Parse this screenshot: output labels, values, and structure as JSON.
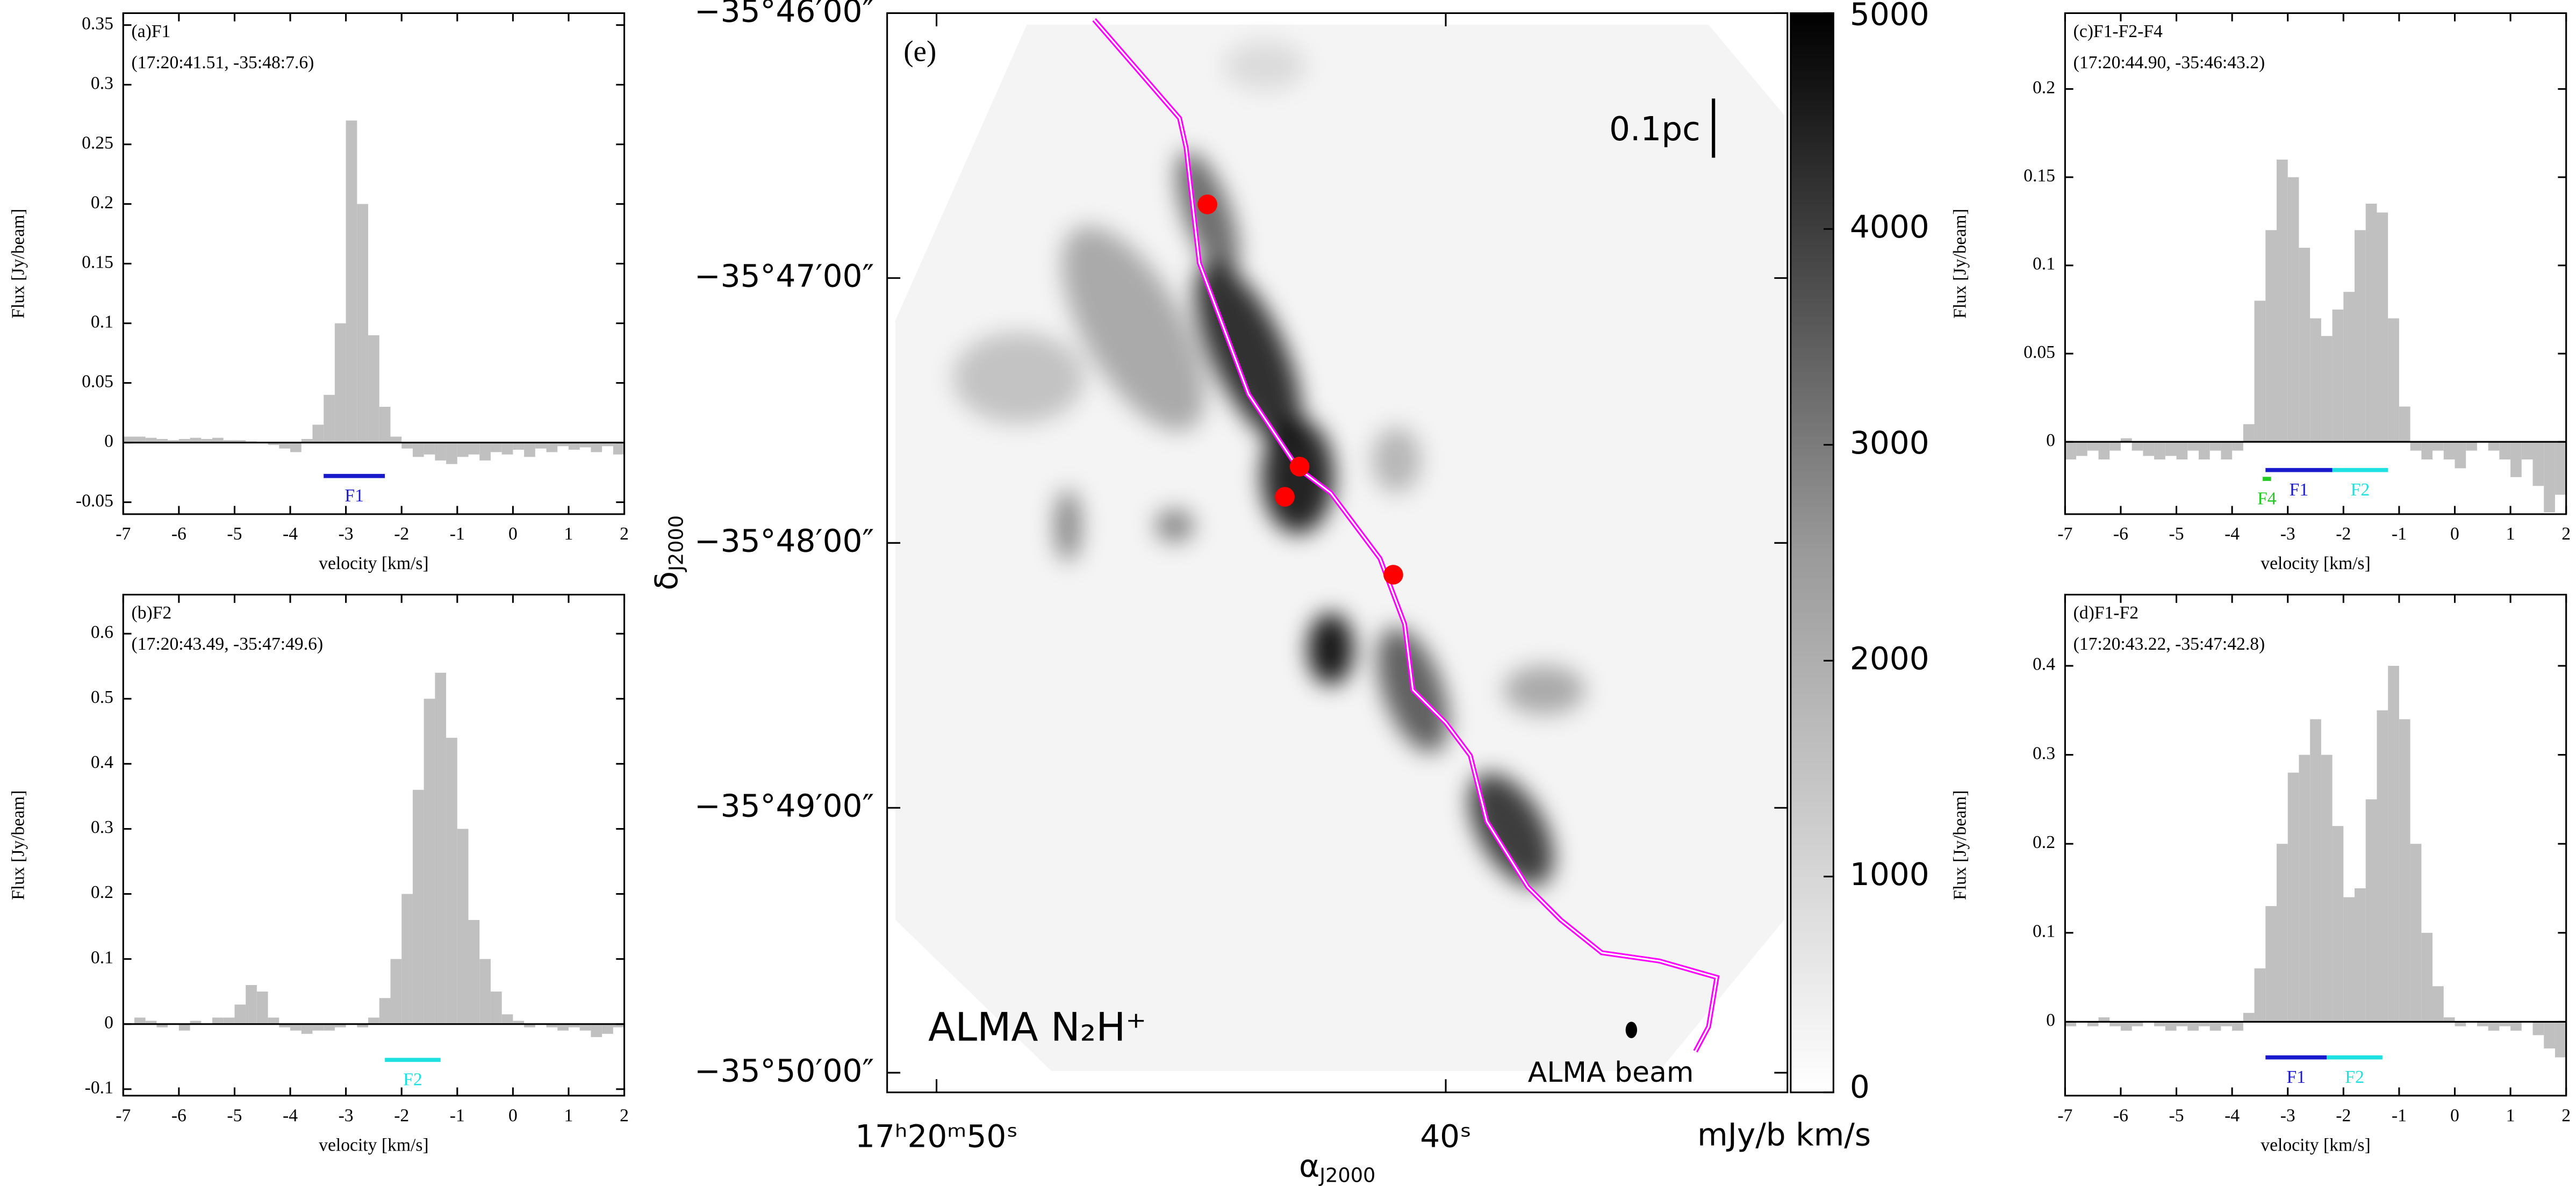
{
  "chart_data": [
    {
      "type": "bar",
      "title": "(a)F1",
      "subtitle": "(17:20:41.51, -35:48:7.6)",
      "xlabel": "velocity [km/s]",
      "ylabel": "Flux [Jy/beam]",
      "color": "#c0c0c0",
      "xlim": [
        -7,
        2
      ],
      "ylim": [
        -0.06,
        0.36
      ],
      "xticks": [
        -7,
        -6,
        -5,
        -4,
        -3,
        -2,
        -1,
        0,
        1,
        2
      ],
      "yticks": [
        -0.05,
        0,
        0.05,
        0.1,
        0.15,
        0.2,
        0.25,
        0.3,
        0.35
      ],
      "x": [
        -6.9,
        -6.7,
        -6.5,
        -6.3,
        -6.1,
        -5.9,
        -5.7,
        -5.5,
        -5.3,
        -5.1,
        -4.9,
        -4.7,
        -4.5,
        -4.3,
        -4.1,
        -3.9,
        -3.7,
        -3.5,
        -3.3,
        -3.1,
        -2.9,
        -2.7,
        -2.5,
        -2.3,
        -2.1,
        -1.9,
        -1.7,
        -1.5,
        -1.3,
        -1.1,
        -0.9,
        -0.7,
        -0.5,
        -0.3,
        -0.1,
        0.1,
        0.3,
        0.5,
        0.7,
        0.9,
        1.1,
        1.3,
        1.5,
        1.7,
        1.9
      ],
      "values": [
        0.005,
        0.005,
        0.004,
        0.003,
        0.002,
        0.003,
        0.004,
        0.003,
        0.004,
        0.002,
        0.002,
        0.001,
        0.0,
        -0.002,
        -0.005,
        -0.008,
        0.003,
        0.015,
        0.04,
        0.1,
        0.27,
        0.2,
        0.09,
        0.03,
        0.005,
        -0.005,
        -0.012,
        -0.01,
        -0.015,
        -0.018,
        -0.012,
        -0.01,
        -0.015,
        -0.008,
        -0.01,
        -0.006,
        -0.012,
        -0.005,
        -0.008,
        -0.003,
        -0.006,
        -0.004,
        -0.008,
        -0.003,
        -0.01
      ],
      "ranges": [
        {
          "label": "F1",
          "start": -3.4,
          "end": -2.3,
          "y": -0.028,
          "color": "#1a1acd"
        }
      ]
    },
    {
      "type": "bar",
      "title": "(b)F2",
      "subtitle": "(17:20:43.49, -35:47:49.6)",
      "xlabel": "velocity [km/s]",
      "ylabel": "Flux [Jy/beam]",
      "color": "#c0c0c0",
      "xlim": [
        -7,
        2
      ],
      "ylim": [
        -0.11,
        0.66
      ],
      "xticks": [
        -7,
        -6,
        -5,
        -4,
        -3,
        -2,
        -1,
        0,
        1,
        2
      ],
      "yticks": [
        -0.1,
        0,
        0.1,
        0.2,
        0.3,
        0.4,
        0.5,
        0.6
      ],
      "x": [
        -6.9,
        -6.7,
        -6.5,
        -6.3,
        -6.1,
        -5.9,
        -5.7,
        -5.5,
        -5.3,
        -5.1,
        -4.9,
        -4.7,
        -4.5,
        -4.3,
        -4.1,
        -3.9,
        -3.7,
        -3.5,
        -3.3,
        -3.1,
        -2.9,
        -2.7,
        -2.5,
        -2.3,
        -2.1,
        -1.9,
        -1.7,
        -1.5,
        -1.3,
        -1.1,
        -0.9,
        -0.7,
        -0.5,
        -0.3,
        -0.1,
        0.1,
        0.3,
        0.5,
        0.7,
        0.9,
        1.1,
        1.3,
        1.5,
        1.7,
        1.9
      ],
      "values": [
        0.0,
        0.01,
        0.005,
        -0.005,
        0.0,
        -0.01,
        0.005,
        0.0,
        0.01,
        0.01,
        0.03,
        0.06,
        0.05,
        0.01,
        -0.005,
        -0.01,
        -0.015,
        -0.01,
        -0.01,
        -0.005,
        0.0,
        -0.005,
        0.01,
        0.04,
        0.1,
        0.2,
        0.36,
        0.5,
        0.54,
        0.44,
        0.3,
        0.16,
        0.1,
        0.05,
        0.015,
        0.005,
        -0.005,
        0.0,
        -0.005,
        -0.01,
        -0.005,
        -0.01,
        -0.02,
        -0.015,
        -0.005
      ],
      "ranges": [
        {
          "label": "F2",
          "start": -2.3,
          "end": -1.3,
          "y": -0.055,
          "color": "#1ee0e0"
        }
      ]
    },
    {
      "type": "bar",
      "title": "(c)F1-F2-F4",
      "subtitle": "(17:20:44.90, -35:46:43.2)",
      "xlabel": "velocity [km/s]",
      "ylabel": "Flux [Jy/beam]",
      "color": "#c0c0c0",
      "xlim": [
        -7,
        2
      ],
      "ylim": [
        -0.041,
        0.243
      ],
      "xticks": [
        -7,
        -6,
        -5,
        -4,
        -3,
        -2,
        -1,
        0,
        1,
        2
      ],
      "yticks": [
        0,
        0.05,
        0.1,
        0.15,
        0.2
      ],
      "x": [
        -6.9,
        -6.7,
        -6.5,
        -6.3,
        -6.1,
        -5.9,
        -5.7,
        -5.5,
        -5.3,
        -5.1,
        -4.9,
        -4.7,
        -4.5,
        -4.3,
        -4.1,
        -3.9,
        -3.7,
        -3.5,
        -3.3,
        -3.1,
        -2.9,
        -2.7,
        -2.5,
        -2.3,
        -2.1,
        -1.9,
        -1.7,
        -1.5,
        -1.3,
        -1.1,
        -0.9,
        -0.7,
        -0.5,
        -0.3,
        -0.1,
        0.1,
        0.3,
        0.5,
        0.7,
        0.9,
        1.1,
        1.3,
        1.5,
        1.7,
        1.9
      ],
      "values": [
        -0.01,
        -0.008,
        -0.005,
        -0.01,
        -0.005,
        0.002,
        -0.005,
        -0.008,
        -0.01,
        -0.008,
        -0.01,
        -0.005,
        -0.01,
        -0.005,
        -0.01,
        -0.005,
        0.01,
        0.08,
        0.12,
        0.16,
        0.15,
        0.11,
        0.07,
        0.06,
        0.075,
        0.085,
        0.12,
        0.135,
        0.13,
        0.07,
        0.02,
        -0.005,
        -0.01,
        -0.005,
        -0.01,
        -0.015,
        -0.005,
        0.0,
        -0.005,
        -0.01,
        -0.02,
        -0.01,
        -0.025,
        -0.04,
        -0.03
      ],
      "ranges": [
        {
          "label": "F1",
          "start": -3.4,
          "end": -2.2,
          "y": -0.016,
          "color": "#1a1acd"
        },
        {
          "label": "F2",
          "start": -2.2,
          "end": -1.2,
          "y": -0.016,
          "color": "#1ee0e0"
        },
        {
          "label": "F4",
          "start": -3.45,
          "end": -3.3,
          "y": -0.021,
          "color": "#22cc22"
        }
      ]
    },
    {
      "type": "bar",
      "title": "(d)F1-F2",
      "subtitle": "(17:20:43.22, -35:47:42.8)",
      "xlabel": "velocity [km/s]",
      "ylabel": "Flux [Jy/beam]",
      "color": "#c0c0c0",
      "xlim": [
        -7,
        2
      ],
      "ylim": [
        -0.083,
        0.48
      ],
      "xticks": [
        -7,
        -6,
        -5,
        -4,
        -3,
        -2,
        -1,
        0,
        1,
        2
      ],
      "yticks": [
        0,
        0.1,
        0.2,
        0.3,
        0.4
      ],
      "x": [
        -6.9,
        -6.7,
        -6.5,
        -6.3,
        -6.1,
        -5.9,
        -5.7,
        -5.5,
        -5.3,
        -5.1,
        -4.9,
        -4.7,
        -4.5,
        -4.3,
        -4.1,
        -3.9,
        -3.7,
        -3.5,
        -3.3,
        -3.1,
        -2.9,
        -2.7,
        -2.5,
        -2.3,
        -2.1,
        -1.9,
        -1.7,
        -1.5,
        -1.3,
        -1.1,
        -0.9,
        -0.7,
        -0.5,
        -0.3,
        -0.1,
        0.1,
        0.3,
        0.5,
        0.7,
        0.9,
        1.1,
        1.3,
        1.5,
        1.7,
        1.9
      ],
      "values": [
        -0.005,
        0.0,
        -0.005,
        0.005,
        -0.005,
        -0.01,
        -0.005,
        0.0,
        -0.005,
        -0.01,
        -0.005,
        -0.01,
        -0.005,
        -0.01,
        -0.005,
        -0.01,
        0.01,
        0.06,
        0.13,
        0.2,
        0.28,
        0.3,
        0.34,
        0.3,
        0.22,
        0.14,
        0.15,
        0.25,
        0.35,
        0.4,
        0.34,
        0.2,
        0.1,
        0.04,
        0.005,
        -0.005,
        0.0,
        -0.005,
        -0.01,
        -0.005,
        -0.01,
        0.0,
        -0.015,
        -0.03,
        -0.04
      ],
      "ranges": [
        {
          "label": "F1",
          "start": -3.4,
          "end": -2.3,
          "y": -0.04,
          "color": "#1a1acd"
        },
        {
          "label": "F2",
          "start": -2.3,
          "end": -1.3,
          "y": -0.04,
          "color": "#1ee0e0"
        }
      ]
    },
    {
      "type": "map",
      "panel": "(e)",
      "label": "ALMA N₂H⁺",
      "scalebar": "0.1pc",
      "beam": "ALMA beam",
      "xlabel": {
        "symbol": "α",
        "sub": "J2000"
      },
      "ylabel": {
        "symbol": "δ",
        "sub": "J2000"
      },
      "xlim": [
        50.97,
        33.29
      ],
      "ylim": [
        -35.83457,
        -35.766667
      ],
      "xticks": [
        {
          "value": 50,
          "label": "17ʰ20ᵐ50ˢ"
        },
        {
          "value": 40,
          "label": "40ˢ"
        }
      ],
      "yticks": [
        {
          "value": -35.766667,
          "label": "−35°46′00″"
        },
        {
          "value": -35.783333,
          "label": "−35°47′00″"
        },
        {
          "value": -35.8,
          "label": "−35°48′00″"
        },
        {
          "value": -35.816667,
          "label": "−35°49′00″"
        },
        {
          "value": -35.833333,
          "label": "−35°50′00″"
        }
      ],
      "points": {
        "color": "#ff0000",
        "x": [
          44.68,
          42.87,
          43.16,
          41.03
        ],
        "y": [
          -35.7787,
          -35.7952,
          -35.7971,
          -35.802
        ]
      },
      "colorbar": {
        "label": "mJy/b km/s",
        "lim": [
          0,
          5000
        ],
        "ticks": [
          0,
          1000,
          2000,
          3000,
          4000,
          5000
        ]
      }
    }
  ]
}
